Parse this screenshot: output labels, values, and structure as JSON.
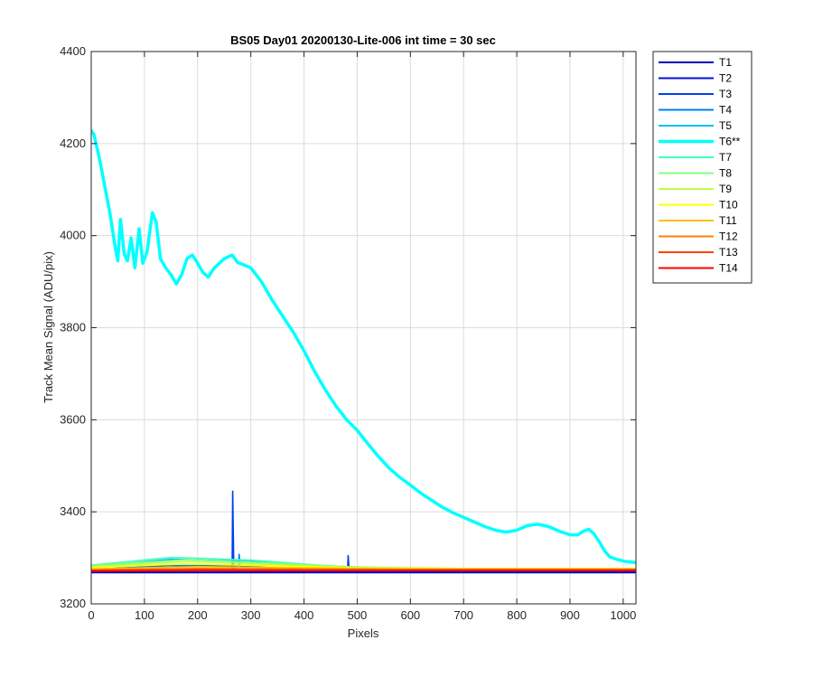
{
  "chart_data": {
    "type": "line",
    "title": "BS05 Day01 20200130-Lite-006 int time = 30 sec",
    "xlabel": "Pixels",
    "ylabel": "Track Mean Signal (ADU/pix)",
    "xlim": [
      0,
      1024
    ],
    "ylim": [
      3200,
      4400
    ],
    "xticks": [
      "0",
      "100",
      "200",
      "300",
      "400",
      "500",
      "600",
      "700",
      "800",
      "900",
      "1000"
    ],
    "yticks": [
      "3200",
      "3400",
      "3600",
      "3800",
      "4000",
      "4200",
      "4400"
    ],
    "grid": true,
    "legend_position": "outside-right",
    "series": [
      {
        "name": "T1",
        "color": "#0000b8",
        "points": [
          [
            0,
            3268
          ],
          [
            200,
            3268
          ],
          [
            400,
            3268
          ],
          [
            600,
            3268
          ],
          [
            800,
            3268
          ],
          [
            1024,
            3268
          ]
        ]
      },
      {
        "name": "T2",
        "color": "#0010dc",
        "points": [
          [
            0,
            3270
          ],
          [
            200,
            3271
          ],
          [
            400,
            3270
          ],
          [
            600,
            3270
          ],
          [
            800,
            3270
          ],
          [
            1024,
            3270
          ]
        ]
      },
      {
        "name": "T3",
        "color": "#0040f0",
        "points": [
          [
            0,
            3272
          ],
          [
            150,
            3276
          ],
          [
            265,
            3276
          ],
          [
            266,
            3445
          ],
          [
            268,
            3276
          ],
          [
            400,
            3272
          ],
          [
            482,
            3272
          ],
          [
            483,
            3305
          ],
          [
            485,
            3272
          ],
          [
            600,
            3272
          ],
          [
            1024,
            3272
          ]
        ]
      },
      {
        "name": "T4",
        "color": "#0080f0",
        "points": [
          [
            0,
            3275
          ],
          [
            150,
            3283
          ],
          [
            277,
            3283
          ],
          [
            278,
            3308
          ],
          [
            280,
            3282
          ],
          [
            400,
            3275
          ],
          [
            600,
            3274
          ],
          [
            1024,
            3273
          ]
        ]
      },
      {
        "name": "T5",
        "color": "#00bff0",
        "points": [
          [
            0,
            3280
          ],
          [
            150,
            3297
          ],
          [
            300,
            3292
          ],
          [
            450,
            3280
          ],
          [
            600,
            3276
          ],
          [
            1024,
            3275
          ]
        ]
      },
      {
        "name": "T6**",
        "color": "#00ffff",
        "highlight": true,
        "points": [
          [
            0,
            4228
          ],
          [
            5,
            4220
          ],
          [
            15,
            4170
          ],
          [
            25,
            4110
          ],
          [
            35,
            4050
          ],
          [
            45,
            3975
          ],
          [
            50,
            3945
          ],
          [
            55,
            4035
          ],
          [
            62,
            3960
          ],
          [
            68,
            3945
          ],
          [
            75,
            3995
          ],
          [
            82,
            3930
          ],
          [
            90,
            4015
          ],
          [
            97,
            3940
          ],
          [
            105,
            3965
          ],
          [
            115,
            4050
          ],
          [
            122,
            4030
          ],
          [
            130,
            3950
          ],
          [
            140,
            3930
          ],
          [
            150,
            3915
          ],
          [
            160,
            3895
          ],
          [
            170,
            3915
          ],
          [
            180,
            3950
          ],
          [
            190,
            3958
          ],
          [
            200,
            3940
          ],
          [
            210,
            3920
          ],
          [
            220,
            3910
          ],
          [
            230,
            3928
          ],
          [
            250,
            3950
          ],
          [
            265,
            3958
          ],
          [
            275,
            3942
          ],
          [
            290,
            3935
          ],
          [
            300,
            3930
          ],
          [
            320,
            3900
          ],
          [
            340,
            3860
          ],
          [
            360,
            3825
          ],
          [
            380,
            3790
          ],
          [
            400,
            3750
          ],
          [
            420,
            3705
          ],
          [
            440,
            3665
          ],
          [
            460,
            3630
          ],
          [
            480,
            3600
          ],
          [
            500,
            3577
          ],
          [
            520,
            3548
          ],
          [
            540,
            3520
          ],
          [
            560,
            3495
          ],
          [
            580,
            3475
          ],
          [
            600,
            3458
          ],
          [
            620,
            3440
          ],
          [
            640,
            3425
          ],
          [
            660,
            3410
          ],
          [
            680,
            3398
          ],
          [
            700,
            3388
          ],
          [
            720,
            3378
          ],
          [
            740,
            3368
          ],
          [
            760,
            3360
          ],
          [
            780,
            3356
          ],
          [
            800,
            3360
          ],
          [
            820,
            3370
          ],
          [
            840,
            3373
          ],
          [
            860,
            3368
          ],
          [
            880,
            3358
          ],
          [
            900,
            3350
          ],
          [
            915,
            3350
          ],
          [
            925,
            3358
          ],
          [
            935,
            3362
          ],
          [
            945,
            3352
          ],
          [
            955,
            3335
          ],
          [
            965,
            3315
          ],
          [
            975,
            3302
          ],
          [
            990,
            3296
          ],
          [
            1005,
            3292
          ],
          [
            1024,
            3290
          ]
        ]
      },
      {
        "name": "T7",
        "color": "#40ffbf",
        "points": [
          [
            0,
            3284
          ],
          [
            150,
            3301
          ],
          [
            300,
            3295
          ],
          [
            450,
            3282
          ],
          [
            600,
            3277
          ],
          [
            1024,
            3276
          ]
        ]
      },
      {
        "name": "T8",
        "color": "#80ff80",
        "points": [
          [
            0,
            3283
          ],
          [
            180,
            3296
          ],
          [
            350,
            3288
          ],
          [
            500,
            3280
          ],
          [
            700,
            3277
          ],
          [
            1024,
            3276
          ]
        ]
      },
      {
        "name": "T9",
        "color": "#bfff40",
        "points": [
          [
            0,
            3281
          ],
          [
            180,
            3292
          ],
          [
            350,
            3285
          ],
          [
            500,
            3279
          ],
          [
            700,
            3277
          ],
          [
            1024,
            3277
          ]
        ]
      },
      {
        "name": "T10",
        "color": "#ffff00",
        "points": [
          [
            0,
            3279
          ],
          [
            180,
            3287
          ],
          [
            350,
            3282
          ],
          [
            500,
            3278
          ],
          [
            700,
            3277
          ],
          [
            1024,
            3277
          ]
        ]
      },
      {
        "name": "T11",
        "color": "#ffbf00",
        "points": [
          [
            0,
            3276
          ],
          [
            200,
            3281
          ],
          [
            400,
            3278
          ],
          [
            600,
            3276
          ],
          [
            1024,
            3276
          ]
        ]
      },
      {
        "name": "T12",
        "color": "#ff8000",
        "points": [
          [
            0,
            3274
          ],
          [
            200,
            3277
          ],
          [
            400,
            3276
          ],
          [
            600,
            3275
          ],
          [
            1024,
            3275
          ]
        ]
      },
      {
        "name": "T13",
        "color": "#ff4000",
        "points": [
          [
            0,
            3273
          ],
          [
            200,
            3275
          ],
          [
            400,
            3274
          ],
          [
            600,
            3274
          ],
          [
            1024,
            3274
          ]
        ]
      },
      {
        "name": "T14",
        "color": "#ff0000",
        "points": [
          [
            0,
            3271
          ],
          [
            200,
            3272
          ],
          [
            400,
            3272
          ],
          [
            600,
            3272
          ],
          [
            1024,
            3272
          ]
        ]
      }
    ]
  }
}
